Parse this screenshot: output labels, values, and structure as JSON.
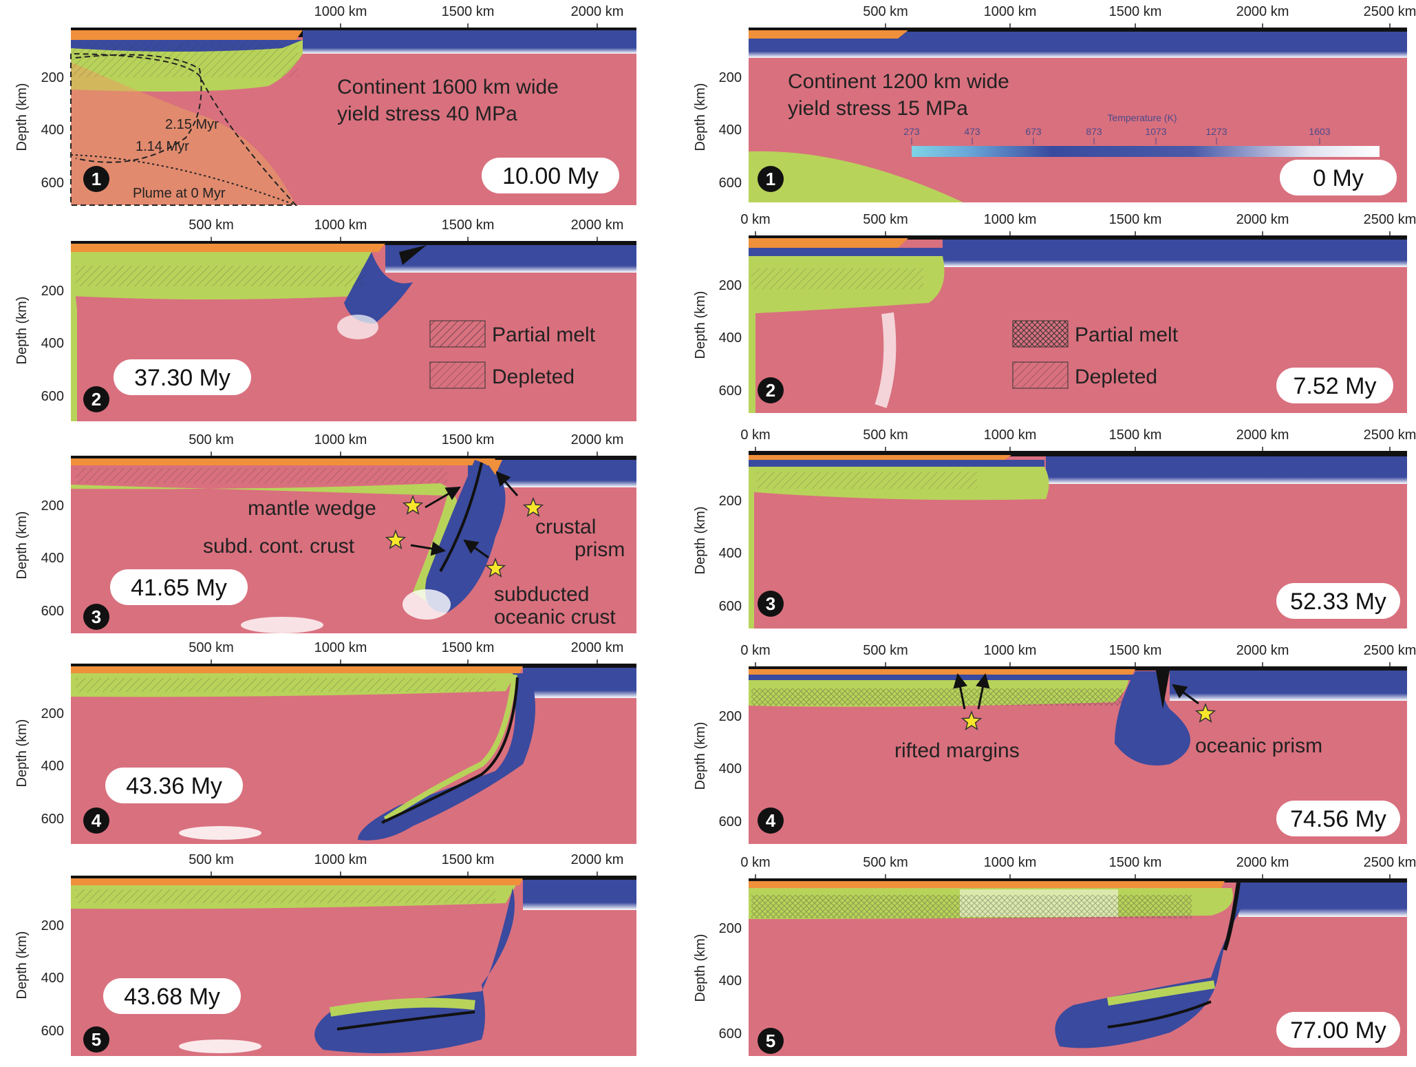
{
  "colors": {
    "mantle": "#d9707e",
    "ocean_lith": "#3a4a9e",
    "continent_lith": "#b8d35a",
    "crust": "#f0903a",
    "sediment": "#111111",
    "hot_white": "#ffffff",
    "star": "#f7e62b"
  },
  "ylabel": "Depth (km)",
  "depth_ticks": [
    "200",
    "400",
    "600"
  ],
  "left_column": {
    "top_ticks": [
      [
        "1000 km",
        "1500 km",
        "2000 km"
      ],
      [
        "500 km",
        "1000 km",
        "1500 km",
        "2000 km"
      ],
      [
        "500 km",
        "1000 km",
        "1500 km",
        "2000 km"
      ],
      [
        "500 km",
        "1000 km",
        "1500 km",
        "2000 km"
      ],
      [
        "500 km",
        "1000 km",
        "1500 km",
        "2000 km"
      ]
    ],
    "title_line1": "Continent 1600 km wide",
    "title_line2": "yield stress 40 MPa",
    "plume_labels": [
      "2.15 Myr",
      "1.14 Myr",
      "Plume at 0 Myr"
    ],
    "legend": {
      "partial_melt": "Partial melt",
      "depleted": "Depleted"
    },
    "annotations": {
      "mantle_wedge": "mantle wedge",
      "subd_cont_crust": "subd. cont. crust",
      "crustal": "crustal",
      "prism": "prism",
      "subducted": "subducted",
      "oceanic_crust": "oceanic crust"
    },
    "times": [
      "10.00 My",
      "37.30 My",
      "41.65 My",
      "43.36 My",
      "43.68 My"
    ],
    "panel_numbers": [
      "1",
      "2",
      "3",
      "4",
      "5"
    ]
  },
  "right_column": {
    "top_ticks": [
      [
        "500 km",
        "1000 km",
        "1500 km",
        "2000 km",
        "2500 km"
      ],
      [
        "0 km",
        "500 km",
        "1000 km",
        "1500 km",
        "2000 km",
        "2500 km"
      ],
      [
        "0 km",
        "500 km",
        "1000 km",
        "1500 km",
        "2000 km",
        "2500 km"
      ],
      [
        "0 km",
        "500 km",
        "1000 km",
        "1500 km",
        "2000 km",
        "2500 km"
      ],
      [
        "0 km",
        "500 km",
        "1000 km",
        "1500 km",
        "2000 km",
        "2500 km"
      ]
    ],
    "title_line1": "Continent 1200 km wide",
    "title_line2": "yield stress 15 MPa",
    "colorbar": {
      "title": "Temperature (K)",
      "ticks": [
        "273",
        "473",
        "673",
        "873",
        "1073",
        "1273",
        "1603"
      ]
    },
    "legend": {
      "partial_melt": "Partial melt",
      "depleted": "Depleted"
    },
    "annotations": {
      "rifted_margins": "rifted margins",
      "oceanic_prism": "oceanic prism"
    },
    "times": [
      "0 My",
      "7.52 My",
      "52.33 My",
      "74.56 My",
      "77.00 My"
    ],
    "panel_numbers": [
      "1",
      "2",
      "3",
      "4",
      "5"
    ]
  }
}
